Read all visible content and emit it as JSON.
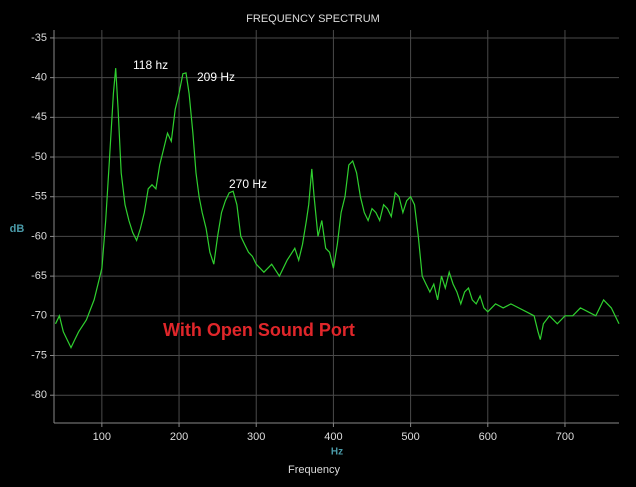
{
  "chart_data": {
    "type": "line",
    "title": "FREQUENCY SPECTRUM",
    "x_label": "Frequency",
    "x_unit": "Hz",
    "y_label": "dB",
    "annotations": [
      "118 hz",
      "209 Hz",
      "270 Hz",
      "With Open Sound Port"
    ],
    "color": "#2fd02f",
    "xlim": [
      38,
      770
    ],
    "ylim": [
      -83.5,
      -34
    ],
    "xticks": [
      100,
      200,
      300,
      400,
      500,
      600,
      700
    ],
    "yticks": [
      -35,
      -40,
      -45,
      -50,
      -55,
      -60,
      -65,
      -70,
      -75,
      -80
    ],
    "grid": true,
    "x": [
      40,
      45,
      50,
      55,
      60,
      65,
      70,
      80,
      90,
      95,
      100,
      105,
      110,
      115,
      118,
      121,
      125,
      130,
      135,
      140,
      145,
      150,
      155,
      160,
      165,
      170,
      175,
      180,
      185,
      190,
      195,
      200,
      205,
      209,
      213,
      218,
      222,
      226,
      230,
      235,
      240,
      245,
      250,
      255,
      260,
      265,
      270,
      275,
      280,
      285,
      290,
      295,
      300,
      305,
      310,
      320,
      330,
      340,
      350,
      355,
      360,
      365,
      368,
      372,
      375,
      380,
      385,
      390,
      395,
      400,
      405,
      410,
      415,
      420,
      425,
      430,
      435,
      440,
      445,
      450,
      455,
      460,
      465,
      470,
      475,
      480,
      485,
      490,
      495,
      500,
      505,
      510,
      515,
      520,
      525,
      530,
      535,
      540,
      545,
      550,
      555,
      560,
      565,
      570,
      575,
      580,
      585,
      590,
      595,
      600,
      610,
      620,
      630,
      640,
      650,
      660,
      665,
      668,
      672,
      680,
      690,
      700,
      710,
      720,
      730,
      740,
      750,
      760,
      770
    ],
    "values": [
      -71,
      -70,
      -72,
      -73,
      -74,
      -73,
      -72,
      -70.5,
      -68,
      -66,
      -64,
      -58,
      -50,
      -42,
      -38.8,
      -44,
      -52,
      -56,
      -58,
      -59.5,
      -60.5,
      -59,
      -57,
      -54,
      -53.5,
      -54,
      -51,
      -49,
      -47,
      -48,
      -44,
      -42,
      -39.5,
      -39.4,
      -42,
      -47,
      -52,
      -55,
      -57,
      -59,
      -62,
      -63.5,
      -60,
      -57,
      -55.5,
      -54.5,
      -54.3,
      -56,
      -60,
      -61,
      -62,
      -62.5,
      -63.5,
      -64,
      -64.5,
      -63.5,
      -65,
      -63,
      -61.5,
      -63,
      -61,
      -58,
      -56,
      -51.5,
      -55,
      -60,
      -58,
      -61.5,
      -62,
      -64,
      -61,
      -57,
      -55,
      -51,
      -50.5,
      -52,
      -55,
      -57,
      -58,
      -56.5,
      -57,
      -58,
      -56,
      -56.5,
      -57.5,
      -54.5,
      -55,
      -57,
      -55.5,
      -55,
      -56,
      -60,
      -65,
      -66,
      -67,
      -66,
      -68,
      -65,
      -66.5,
      -64.5,
      -66,
      -67,
      -68.5,
      -67,
      -66.5,
      -68,
      -68.5,
      -67.5,
      -69,
      -69.5,
      -68.5,
      -69,
      -68.5,
      -69,
      -69.5,
      -70,
      -72,
      -73,
      -71,
      -70,
      -71,
      -70,
      -70,
      -69,
      -69.5,
      -70,
      -68,
      -69,
      -71
    ]
  }
}
